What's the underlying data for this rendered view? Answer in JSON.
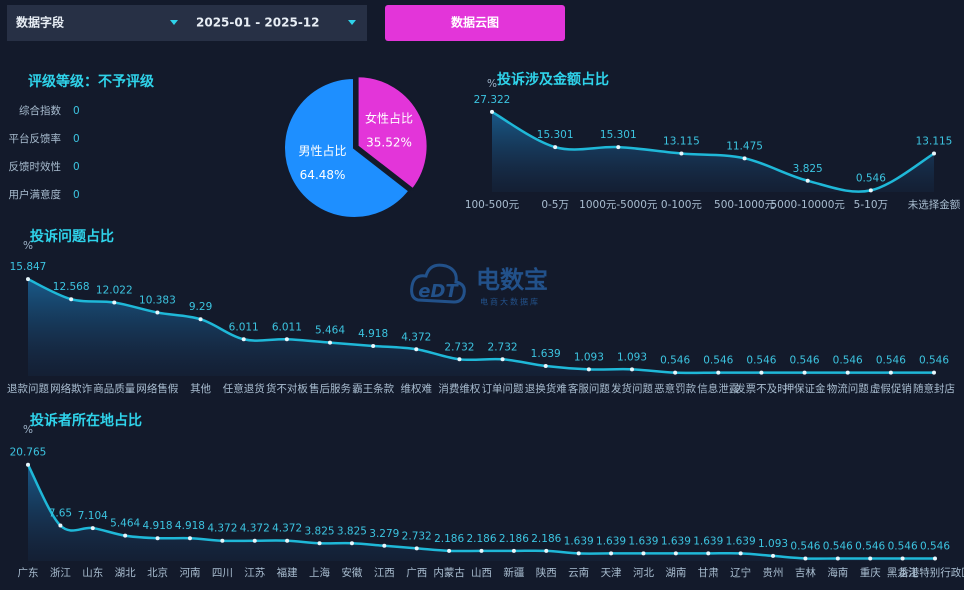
{
  "toolbar": {
    "field": "数据字段",
    "date_range": "2025-01 - 2025-12",
    "button": "数据云图"
  },
  "rating": {
    "title": "评级等级：不予评级",
    "items": [
      {
        "label": "综合指数",
        "value": 0
      },
      {
        "label": "平台反馈率",
        "value": 0
      },
      {
        "label": "反馈时效性",
        "value": 0
      },
      {
        "label": "用户满意度",
        "value": 0
      }
    ]
  },
  "watermark": {
    "logo": "eDT",
    "name": "电数宝",
    "sub": "电商大数据库"
  },
  "chart_data": [
    {
      "type": "pie",
      "categories": [
        "女性占比",
        "男性占比"
      ],
      "values": [
        35.52,
        64.48
      ],
      "value_labels": [
        "35.52%",
        "64.48%"
      ],
      "colors": [
        "#e335d9",
        "#1e8fff"
      ]
    },
    {
      "type": "line",
      "title": "投诉涉及金额占比",
      "y_label": "%",
      "color": "#1fb8d8",
      "ylim": [
        0,
        30
      ],
      "categories": [
        "100-500元",
        "0-5万",
        "1000元-5000元",
        "0-100元",
        "500-1000元",
        "5000-10000元",
        "5-10万",
        "未选择金额"
      ],
      "values": [
        27.322,
        15.301,
        15.301,
        13.115,
        11.475,
        3.825,
        0.546,
        13.115
      ]
    },
    {
      "type": "line",
      "title": "投诉问题占比",
      "y_label": "%",
      "color": "#1fb8d8",
      "ylim": [
        0,
        18
      ],
      "categories": [
        "退款问题",
        "网络欺诈",
        "商品质量",
        "网络售假",
        "其他",
        "任意退货",
        "货不对板",
        "售后服务",
        "霸王条款",
        "维权难",
        "消费维权",
        "订单问题",
        "退换货难",
        "客服问题",
        "发货问题",
        "恶意罚款",
        "信息泄露",
        "发票不及时",
        "押保证金",
        "物流问题",
        "虚假促销",
        "随意封店"
      ],
      "values": [
        15.847,
        12.568,
        12.022,
        10.383,
        9.29,
        6.011,
        6.011,
        5.464,
        4.918,
        4.372,
        2.732,
        2.732,
        1.639,
        1.093,
        1.093,
        0.546,
        0.546,
        0.546,
        0.546,
        0.546,
        0.546,
        0.546
      ]
    },
    {
      "type": "line",
      "title": "投诉者所在地占比",
      "y_label": "%",
      "color": "#1fb8d8",
      "ylim": [
        0,
        22
      ],
      "categories": [
        "广东",
        "浙江",
        "山东",
        "湖北",
        "北京",
        "河南",
        "四川",
        "江苏",
        "福建",
        "上海",
        "安徽",
        "江西",
        "广西",
        "内蒙古",
        "山西",
        "新疆",
        "陕西",
        "云南",
        "天津",
        "河北",
        "湖南",
        "甘肃",
        "辽宁",
        "贵州",
        "吉林",
        "海南",
        "重庆",
        "黑龙江",
        "香港特别行政区"
      ],
      "values": [
        20.765,
        7.65,
        7.104,
        5.464,
        4.918,
        4.918,
        4.372,
        4.372,
        4.372,
        3.825,
        3.825,
        3.279,
        2.732,
        2.186,
        2.186,
        2.186,
        2.186,
        1.639,
        1.639,
        1.639,
        1.639,
        1.639,
        1.639,
        1.093,
        0.546,
        0.546,
        0.546,
        0.546,
        0.546
      ]
    }
  ]
}
